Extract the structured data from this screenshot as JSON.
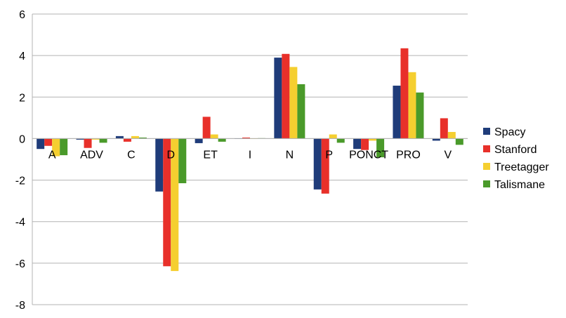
{
  "chart_data": {
    "type": "bar",
    "title": "",
    "xlabel": "",
    "ylabel": "",
    "ylim": [
      -8,
      6
    ],
    "yticks": [
      6,
      4,
      2,
      0,
      -2,
      -4,
      -6,
      -8
    ],
    "grid": true,
    "legend_position": "right",
    "categories": [
      "A",
      "ADV",
      "C",
      "D",
      "ET",
      "I",
      "N",
      "P",
      "PONCT",
      "PRO",
      "V"
    ],
    "series": [
      {
        "name": "Spacy",
        "color": "#1f3c7a",
        "values": [
          -0.5,
          -0.05,
          0.12,
          -2.55,
          -0.22,
          0.0,
          3.9,
          -2.45,
          -0.5,
          2.55,
          -0.1
        ]
      },
      {
        "name": "Stanford",
        "color": "#e8302a",
        "values": [
          -0.35,
          -0.45,
          -0.15,
          -6.15,
          1.05,
          0.05,
          4.08,
          -2.65,
          -0.55,
          4.35,
          0.98
        ]
      },
      {
        "name": "Treetagger",
        "color": "#f5cf30",
        "values": [
          -0.85,
          -0.05,
          0.12,
          -6.38,
          0.2,
          0.0,
          3.45,
          0.2,
          -0.1,
          3.2,
          0.32
        ]
      },
      {
        "name": "Talismane",
        "color": "#4a9a2a",
        "values": [
          -0.8,
          -0.2,
          0.05,
          -2.15,
          -0.15,
          0.02,
          2.62,
          -0.2,
          -0.9,
          2.22,
          -0.3
        ]
      }
    ]
  }
}
